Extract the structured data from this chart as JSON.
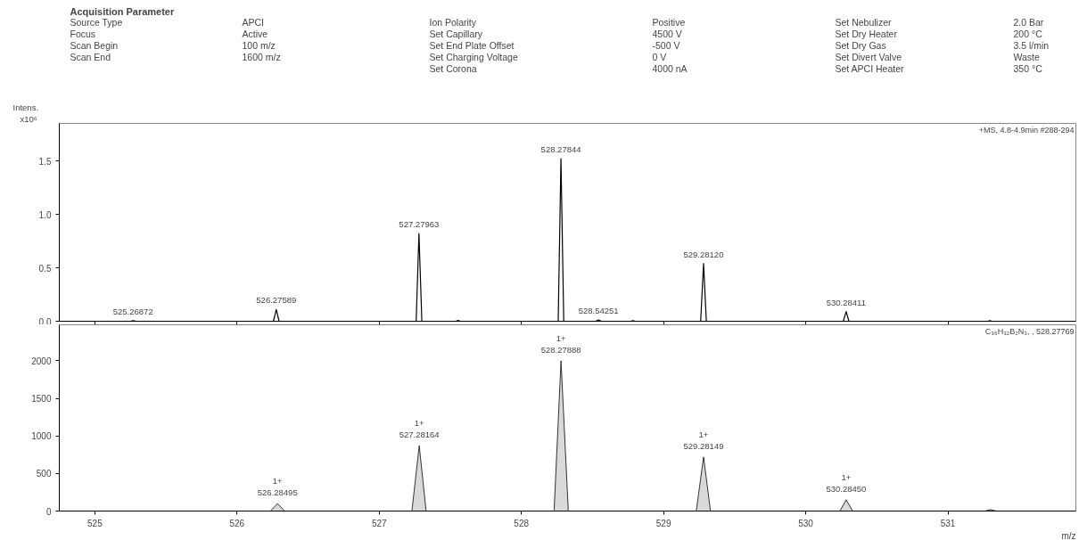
{
  "chart_data": [
    {
      "type": "other",
      "title": "Acquisition Parameter",
      "annotations": [
        "Source Type",
        "APCI",
        "Focus",
        "Active",
        "Scan Begin",
        "100 m/z",
        "Scan End",
        "1600 m/z",
        "Ion Polarity",
        "Positive",
        "Set Capillary",
        "4500 V",
        "Set End Plate Offset",
        "-500 V",
        "Set Charging Voltage",
        "0 V",
        "Set Corona",
        "4000 nA",
        "Set Nebulizer",
        "2.0 Bar",
        "Set Dry Heater",
        "200 °C",
        "Set Dry Gas",
        "3.5 l/min",
        "Set Divert Valve",
        "Waste",
        "Set APCI Heater",
        "350 °C"
      ]
    },
    {
      "type": "line",
      "ylabel": "Intens.",
      "subtitle": "+MS, 4.8-4.9min #288-294",
      "xlim": [
        524.75,
        531.9
      ],
      "ylim": [
        0,
        1.85
      ],
      "tick_labels": "y",
      "yticks": [
        {
          "value": 0,
          "label": "0.0"
        },
        {
          "value": 0.5,
          "label": "0.5"
        },
        {
          "value": 1,
          "label": "1.0"
        },
        {
          "value": 1.5,
          "label": "1.5"
        }
      ],
      "xticks": [
        {
          "value": 525,
          "label": null
        },
        {
          "value": 526,
          "label": null
        },
        {
          "value": 527,
          "label": null
        },
        {
          "value": 528,
          "label": null
        },
        {
          "value": 529,
          "label": null
        },
        {
          "value": 530,
          "label": null
        },
        {
          "value": 531,
          "label": null
        }
      ],
      "series": [
        {
          "color": "#000000",
          "x": [
            524.75,
            525.25,
            525.269,
            525.29,
            526.256,
            526.276,
            526.296,
            527.26,
            527.2796,
            527.3,
            527.54,
            527.555,
            527.57,
            528.259,
            528.2784,
            528.298,
            528.523,
            528.5425,
            528.562,
            528.77,
            528.785,
            528.8,
            529.261,
            529.2812,
            529.301,
            530.264,
            530.2841,
            530.304,
            531.28,
            531.295,
            531.31,
            531.9
          ],
          "values": [
            0,
            0,
            0.006,
            0,
            0,
            0.11,
            0,
            0,
            0.82,
            0,
            0,
            0.008,
            0,
            0,
            1.52,
            0,
            0,
            0.012,
            0,
            0,
            0.006,
            0,
            0,
            0.54,
            0,
            0,
            0.09,
            0,
            0,
            0.005,
            0,
            0
          ]
        }
      ],
      "annotations": [
        "x10⁶",
        {
          "text": "525.26872",
          "x": 525.26872,
          "y": 0.006
        },
        {
          "text": "526.27589",
          "x": 526.27589,
          "y": 0.11
        },
        {
          "text": "527.27963",
          "x": 527.27963,
          "y": 0.82
        },
        {
          "text": "528.27844",
          "x": 528.27844,
          "y": 1.52
        },
        {
          "text": "528.54251",
          "x": 528.54251,
          "y": 0.012
        },
        {
          "text": "529.28120",
          "x": 529.2812,
          "y": 0.54
        },
        {
          "text": "530.28411",
          "x": 530.28411,
          "y": 0.09
        }
      ]
    },
    {
      "type": "area",
      "xlabel": "m/z",
      "subtitle": "C₃₆H₃₂B₂N₃, , 528.27769",
      "xlim": [
        524.75,
        531.9
      ],
      "ylim": [
        0,
        2480
      ],
      "yticks": [
        0,
        500,
        1000,
        1500,
        2000
      ],
      "xticks": [
        525,
        526,
        527,
        528,
        529,
        530,
        531
      ],
      "series": [
        {
          "color": "#d9d9d9",
          "x": [
            524.75,
            526.235,
            526.285,
            526.335,
            527.23,
            527.2816,
            527.33,
            528.23,
            528.2789,
            528.33,
            529.23,
            529.2815,
            529.33,
            530.24,
            530.2845,
            530.33,
            531.26,
            531.3,
            531.34,
            531.9
          ],
          "values": [
            0,
            0,
            100,
            0,
            0,
            870,
            0,
            0,
            2000,
            0,
            0,
            720,
            0,
            0,
            150,
            0,
            0,
            20,
            0,
            0
          ]
        }
      ],
      "annotations": [
        {
          "text": "1+\n526.28495",
          "x": 526.28495,
          "y": 100
        },
        {
          "text": "1+\n527.28164",
          "x": 527.28164,
          "y": 870
        },
        {
          "text": "1+\n528.27888",
          "x": 528.27888,
          "y": 2000
        },
        {
          "text": "1+\n529.28149",
          "x": 529.28149,
          "y": 720
        },
        {
          "text": "1+\n530.28450",
          "x": 530.2845,
          "y": 150
        }
      ]
    }
  ]
}
